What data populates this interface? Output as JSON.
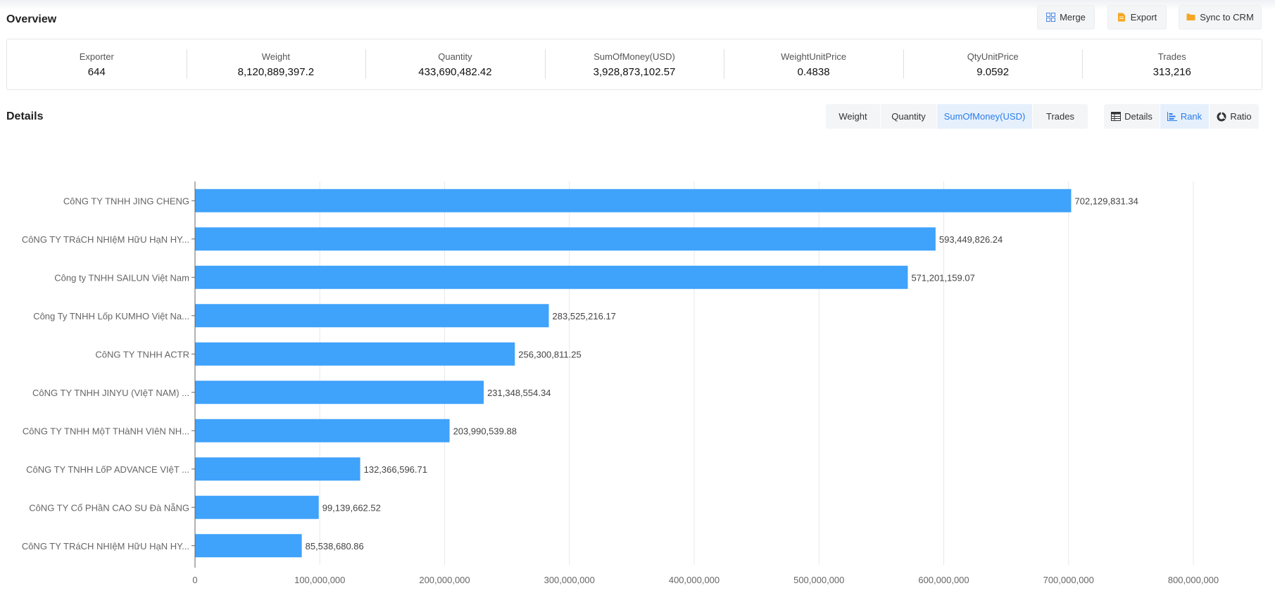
{
  "overview": {
    "title": "Overview",
    "buttons": [
      {
        "label": "Merge",
        "icon": "merge-icon",
        "color": "#4a86e8"
      },
      {
        "label": "Export",
        "icon": "export-icon",
        "color": "#f5a623"
      },
      {
        "label": "Sync to CRM",
        "icon": "folder-icon",
        "color": "#f5a623"
      }
    ],
    "stats": [
      {
        "label": "Exporter",
        "value": "644"
      },
      {
        "label": "Weight",
        "value": "8,120,889,397.2"
      },
      {
        "label": "Quantity",
        "value": "433,690,482.42"
      },
      {
        "label": "SumOfMoney(USD)",
        "value": "3,928,873,102.57"
      },
      {
        "label": "WeightUnitPrice",
        "value": "0.4838"
      },
      {
        "label": "QtyUnitPrice",
        "value": "9.0592"
      },
      {
        "label": "Trades",
        "value": "313,216"
      }
    ]
  },
  "details": {
    "title": "Details",
    "metric_tabs": [
      "Weight",
      "Quantity",
      "SumOfMoney(USD)",
      "Trades"
    ],
    "active_metric": "SumOfMoney(USD)",
    "view_tabs": [
      {
        "label": "Details",
        "icon": "table-icon"
      },
      {
        "label": "Rank",
        "icon": "bar-chart-icon"
      },
      {
        "label": "Ratio",
        "icon": "pie-icon"
      }
    ],
    "active_view": "Rank"
  },
  "chart_data": {
    "type": "bar",
    "orientation": "horizontal",
    "categories": [
      "CôNG TY TNHH JING CHENG",
      "CôNG TY TRáCH NHIệM HữU HạN HY...",
      "Công ty TNHH SAILUN Việt Nam",
      "Công Ty TNHH Lốp KUMHO Việt Na...",
      "CôNG TY TNHH ACTR",
      "CôNG TY TNHH JINYU (VIệT NAM) ...",
      "CôNG TY TNHH MộT THàNH VIêN NH...",
      "CôNG TY TNHH LốP ADVANCE VIệT ...",
      "CôNG TY Cổ PHầN CAO SU Đà NẵNG",
      "CôNG TY TRáCH NHIệM HữU HạN HY..."
    ],
    "values": [
      702129831.34,
      593449826.24,
      571201159.07,
      283525216.17,
      256300811.25,
      231348554.34,
      203990539.88,
      132366596.71,
      99139662.52,
      85538680.86
    ],
    "value_labels": [
      "702,129,831.34",
      "593,449,826.24",
      "571,201,159.07",
      "283,525,216.17",
      "256,300,811.25",
      "231,348,554.34",
      "203,990,539.88",
      "132,366,596.71",
      "99,139,662.52",
      "85,538,680.86"
    ],
    "xlim": [
      0,
      800000000
    ],
    "x_ticks": [
      0,
      100000000,
      200000000,
      300000000,
      400000000,
      500000000,
      600000000,
      700000000,
      800000000
    ],
    "x_tick_labels": [
      "0",
      "100,000,000",
      "200,000,000",
      "300,000,000",
      "400,000,000",
      "500,000,000",
      "600,000,000",
      "700,000,000",
      "800,000,000"
    ],
    "grid": true,
    "bar_color": "#3fa2fb"
  }
}
